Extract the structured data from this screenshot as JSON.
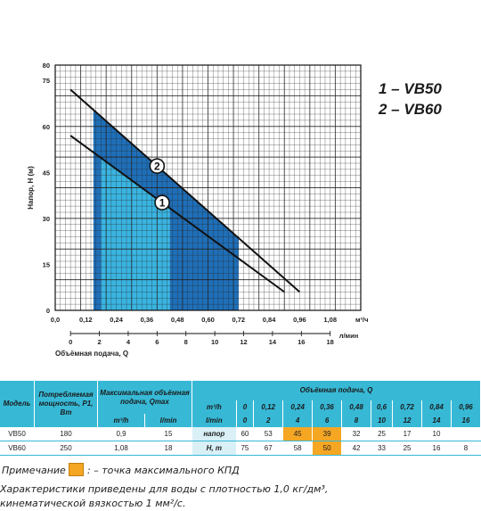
{
  "chart_data": {
    "type": "line",
    "ylabel": "Напор, Н (м)",
    "xlabel": "Объёмная подача, Q",
    "x_unit_top": "м³/ч",
    "x_unit_bottom": "л/мин",
    "x_ticks_m3h": [
      "0,0",
      "0,12",
      "0,24",
      "0,36",
      "0,48",
      "0,60",
      "0,72",
      "0,84",
      "0,96",
      "1,08"
    ],
    "x_ticks_lmin": [
      "0",
      "2",
      "4",
      "6",
      "8",
      "10",
      "12",
      "14",
      "16",
      "18"
    ],
    "y_ticks": [
      "0",
      "15",
      "30",
      "45",
      "60",
      "75",
      "80"
    ],
    "xlim_m3h": [
      0,
      1.2
    ],
    "ylim": [
      0,
      80
    ],
    "grid": true,
    "series": [
      {
        "name": "1",
        "x": [
          0.06,
          0.9
        ],
        "y": [
          57,
          6
        ]
      },
      {
        "name": "2",
        "x": [
          0.06,
          0.96
        ],
        "y": [
          72,
          6
        ]
      }
    ],
    "regions": [
      {
        "series": "1",
        "x_from": 0.18,
        "x_to": 0.45,
        "color": "#3ab4e0"
      },
      {
        "series": "2",
        "x_from": 0.15,
        "x_to": 0.18,
        "color": "#1f6fb8"
      },
      {
        "series": "2",
        "x_from": 0.45,
        "x_to": 0.72,
        "color": "#1f6fb8"
      }
    ]
  },
  "legend": {
    "line1": "1 – VB50",
    "line2": "2 – VB60"
  },
  "table": {
    "h_model": "Модель",
    "h_power": "Потребляемая мощность, P1, Вт",
    "h_qmax": "Максимальная объёмная подача, Qmax",
    "h_flow": "Объёмная подача, Q",
    "unit_m3h": "m³/h",
    "unit_lmin": "l/min",
    "unit_m3h_short": "m³/h",
    "unit_lmin_short": "l/min",
    "flow_m3h": [
      "0",
      "0,12",
      "0,24",
      "0,36",
      "0,48",
      "0,6",
      "0,72",
      "0,84",
      "0,96"
    ],
    "flow_lmin": [
      "0",
      "2",
      "4",
      "6",
      "8",
      "10",
      "12",
      "14",
      "16"
    ],
    "row_label_head": "напор",
    "row_label_unit": "H, m",
    "rows": [
      {
        "model": "VB50",
        "power": "180",
        "q_m3h": "0,9",
        "q_lmin": "15",
        "head": [
          "60",
          "53",
          "45",
          "39",
          "32",
          "25",
          "17",
          "10",
          ""
        ]
      },
      {
        "model": "VB60",
        "power": "250",
        "q_m3h": "1,08",
        "q_lmin": "18",
        "head": [
          "75",
          "67",
          "58",
          "50",
          "42",
          "33",
          "25",
          "16",
          "8"
        ]
      }
    ]
  },
  "note": {
    "label": "Примечание",
    "text": ": – точка максимального КПД"
  },
  "footnote": {
    "line1": "Характеристики приведены для воды с плотностью 1,0 кг/дм³,",
    "line2": "кинематической вязкостью 1 мм²/с."
  },
  "colors": {
    "light": "#3ab4e0",
    "dark": "#1f6fb8",
    "header": "#37b9d6",
    "accent": "#f5a623"
  }
}
